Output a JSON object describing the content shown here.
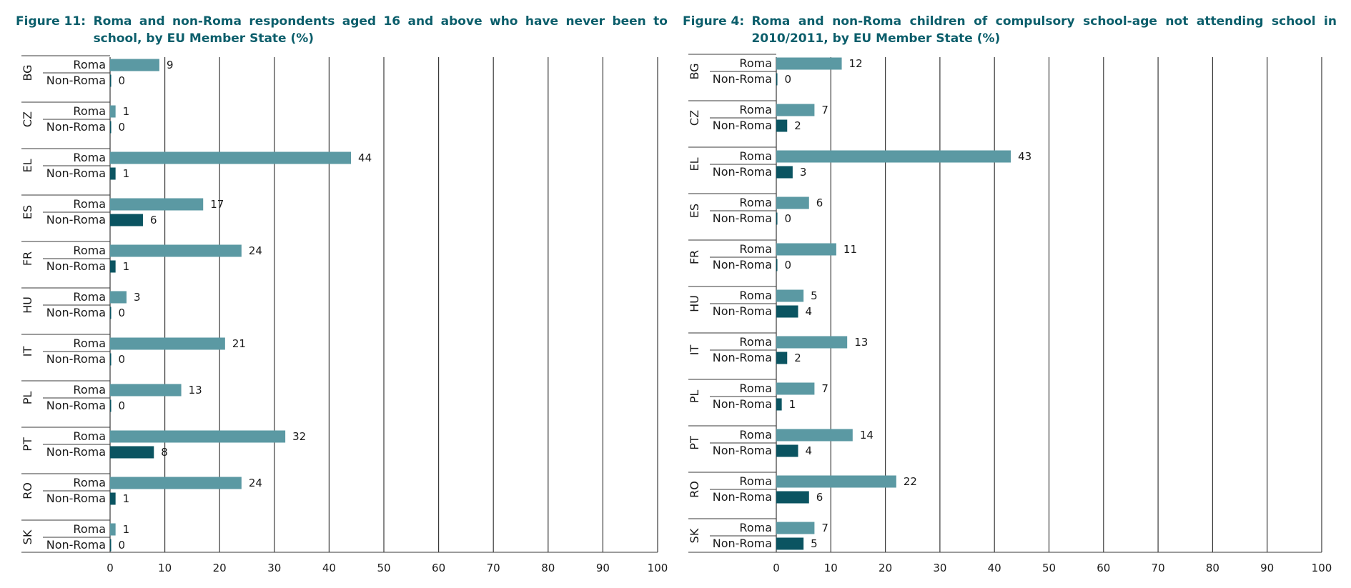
{
  "colors": {
    "roma": "#5b99a3",
    "non_roma": "#0b5461",
    "title": "#0b5e6b"
  },
  "chart_data": [
    {
      "type": "bar",
      "figure_label": "Figure 11:",
      "title": "Roma and non-Roma respondents aged 16 and above who have never been to school, by EU Member State (%)",
      "categories": [
        "BG",
        "CZ",
        "EL",
        "ES",
        "FR",
        "HU",
        "IT",
        "PL",
        "PT",
        "RO",
        "SK"
      ],
      "series": [
        {
          "name": "Roma",
          "values": [
            9,
            1,
            44,
            17,
            24,
            3,
            21,
            13,
            32,
            24,
            1
          ]
        },
        {
          "name": "Non-Roma",
          "values": [
            0,
            0,
            1,
            6,
            1,
            0,
            0,
            0,
            8,
            1,
            0
          ]
        }
      ],
      "xlim": [
        0,
        100
      ],
      "xticks": [
        0,
        10,
        20,
        30,
        40,
        50,
        60,
        70,
        80,
        90,
        100
      ],
      "orientation": "horizontal",
      "grid": true
    },
    {
      "type": "bar",
      "figure_label": "Figure 4:",
      "title": "Roma and non-Roma children of compulsory school-age not attending school in 2010/2011, by EU Member State (%)",
      "categories": [
        "BG",
        "CZ",
        "EL",
        "ES",
        "FR",
        "HU",
        "IT",
        "PL",
        "PT",
        "RO",
        "SK"
      ],
      "series": [
        {
          "name": "Roma",
          "values": [
            12,
            7,
            43,
            6,
            11,
            5,
            13,
            7,
            14,
            22,
            7
          ]
        },
        {
          "name": "Non-Roma",
          "values": [
            0,
            2,
            3,
            0,
            0,
            4,
            2,
            1,
            4,
            6,
            5
          ]
        }
      ],
      "xlim": [
        0,
        100
      ],
      "xticks": [
        0,
        10,
        20,
        30,
        40,
        50,
        60,
        70,
        80,
        90,
        100
      ],
      "orientation": "horizontal",
      "grid": true
    }
  ]
}
